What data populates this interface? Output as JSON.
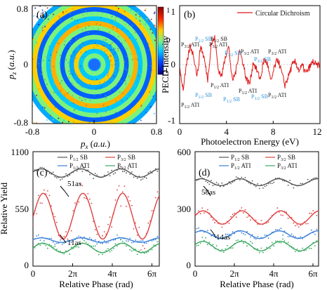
{
  "figure": {
    "panel_a": {
      "label": "(a)",
      "xlabel": "p_x (a.u.)",
      "ylabel": "p_z (a.u.)",
      "xticks": [
        "-0.8",
        "0",
        "0.8"
      ],
      "yticks": [
        "0.8",
        "0",
        "-0.8"
      ],
      "colorbar_ticks": [
        "1",
        "0",
        "-1"
      ]
    },
    "panel_b": {
      "label": "(b)",
      "legend": "Circular Dichroism",
      "ylabel": "PECD Intensity",
      "xlabel": "Photoelectron Energy (eV)",
      "yticks": [
        "1",
        "0",
        "-1"
      ],
      "xticks": [
        "0",
        "4",
        "8",
        "12"
      ],
      "annotations": [
        {
          "text": "P3/2 ATI",
          "color": "#111111"
        },
        {
          "text": "P1/2 SB",
          "color": "#2a8fd6"
        },
        {
          "text": "P3/2 SB",
          "color": "#111111"
        },
        {
          "text": "P1/2 ATI",
          "color": "#111111"
        },
        {
          "text": "P1/2 SB",
          "color": "#2a8fd6"
        },
        {
          "text": "P3/2 SB",
          "color": "#111111"
        },
        {
          "text": "P1/2 ATI",
          "color": "#111111"
        },
        {
          "text": "P3/2 ATI",
          "color": "#111111"
        },
        {
          "text": "P1/2 SB",
          "color": "#2a8fd6"
        },
        {
          "text": "P1/2 ATI",
          "color": "#111111"
        },
        {
          "text": "P3/2 ATI",
          "color": "#111111"
        },
        {
          "text": "P1/2 SB",
          "color": "#2a8fd6"
        },
        {
          "text": "P1/2 ATI",
          "color": "#111111"
        }
      ]
    },
    "panel_c": {
      "label": "(c)",
      "ylabel": "Relative Yield",
      "xlabel": "Relative Phase (rad)",
      "yticks": [
        "1100",
        "550",
        "0"
      ],
      "xticks": [
        "0",
        "2π",
        "4π",
        "6π"
      ],
      "delay_labels": [
        "51as",
        "11as"
      ]
    },
    "panel_d": {
      "label": "(d)",
      "xlabel": "Relative Phase (rad)",
      "yticks": [
        "600",
        "300",
        "0"
      ],
      "xticks": [
        "0",
        "2π",
        "4π",
        "6π"
      ],
      "delay_labels": [
        "58as",
        "14as"
      ]
    },
    "legend_entries": [
      {
        "main": "P",
        "sub": "1/2",
        "rest": " SB",
        "color": "#555555"
      },
      {
        "main": "P",
        "sub": "3/2",
        "rest": " SB",
        "color": "#e04040"
      },
      {
        "main": "P",
        "sub": "1/2",
        "rest": " ATI",
        "color": "#3a7fd8"
      },
      {
        "main": "P",
        "sub": "3/2",
        "rest": " ATI",
        "color": "#3aa860"
      }
    ]
  },
  "chart_data": [
    {
      "type": "heatmap",
      "panel": "(a)",
      "xlabel": "px (a.u.)",
      "ylabel": "pz (a.u.)",
      "xlim": [
        -0.8,
        0.8
      ],
      "ylim": [
        -0.8,
        0.8
      ],
      "colorbar_range": [
        -1,
        1
      ]
    },
    {
      "type": "line",
      "panel": "(b)",
      "xlabel": "Photoelectron Energy (eV)",
      "ylabel": "PECD Intensity",
      "xlim": [
        0,
        12
      ],
      "ylim": [
        -1,
        1
      ],
      "series": [
        {
          "name": "Circular Dichroism",
          "color": "#e01818",
          "x": [
            0.0,
            0.3,
            0.6,
            0.9,
            1.2,
            1.5,
            1.8,
            2.1,
            2.4,
            2.7,
            3.0,
            3.3,
            3.6,
            3.9,
            4.2,
            4.5,
            4.8,
            5.1,
            5.4,
            5.7,
            6.0,
            6.3,
            6.6,
            6.9,
            7.2,
            7.5,
            7.8,
            8.1,
            8.4,
            8.7,
            9.0,
            9.3,
            9.6,
            9.9,
            10.2,
            10.5,
            10.8,
            11.1,
            11.4,
            11.7,
            12.0
          ],
          "y": [
            -0.05,
            -0.42,
            0.0,
            0.32,
            0.15,
            -0.2,
            0.32,
            0.1,
            -0.25,
            0.35,
            0.45,
            -0.08,
            -0.2,
            0.15,
            0.3,
            -0.28,
            -0.12,
            0.25,
            0.05,
            -0.25,
            -0.32,
            0.05,
            -0.1,
            -0.25,
            0.08,
            0.02,
            -0.3,
            -0.05,
            0.1,
            -0.12,
            -0.35,
            -0.2,
            -0.02,
            0.05,
            -0.1,
            -0.02,
            -0.15,
            -0.05,
            0.05,
            -0.02,
            0.0
          ]
        }
      ]
    },
    {
      "type": "line",
      "panel": "(c)",
      "xlabel": "Relative Phase (rad)",
      "ylabel": "Relative Yield",
      "xlim": [
        0,
        20
      ],
      "ylim": [
        0,
        1100
      ],
      "xtick_labels": [
        "0",
        "2π",
        "4π",
        "6π"
      ],
      "series": [
        {
          "name": "P1/2 SB",
          "color": "#555555",
          "mean": 895,
          "amplitude": 40,
          "period": 6.2832,
          "phase": 1.3
        },
        {
          "name": "P3/2 SB",
          "color": "#e04040",
          "mean": 480,
          "amplitude": 220,
          "period": 6.2832,
          "phase": 1.62
        },
        {
          "name": "P1/2 ATI",
          "color": "#3a7fd8",
          "mean": 250,
          "amplitude": 22,
          "period": 6.2832,
          "phase": 1.35
        },
        {
          "name": "P3/2 ATI",
          "color": "#3aa860",
          "mean": 175,
          "amplitude": 45,
          "period": 6.2832,
          "phase": 1.55
        }
      ],
      "annotations": [
        "51as",
        "11as"
      ]
    },
    {
      "type": "line",
      "panel": "(d)",
      "xlabel": "Relative Phase (rad)",
      "xlim": [
        0,
        20
      ],
      "ylim": [
        0,
        600
      ],
      "xtick_labels": [
        "0",
        "2π",
        "4π",
        "6π"
      ],
      "series": [
        {
          "name": "P1/2 SB",
          "color": "#555555",
          "mean": 440,
          "amplitude": 18,
          "period": 6.2832,
          "phase": 1.0
        },
        {
          "name": "P3/2 SB",
          "color": "#e04040",
          "mean": 255,
          "amplitude": 35,
          "period": 6.2832,
          "phase": 1.3
        },
        {
          "name": "P1/2 ATI",
          "color": "#3a7fd8",
          "mean": 165,
          "amplitude": 20,
          "period": 6.2832,
          "phase": 1.05
        },
        {
          "name": "P3/2 ATI",
          "color": "#3aa860",
          "mean": 105,
          "amplitude": 25,
          "period": 6.2832,
          "phase": 1.25
        }
      ],
      "annotations": [
        "58as",
        "14as"
      ]
    }
  ]
}
